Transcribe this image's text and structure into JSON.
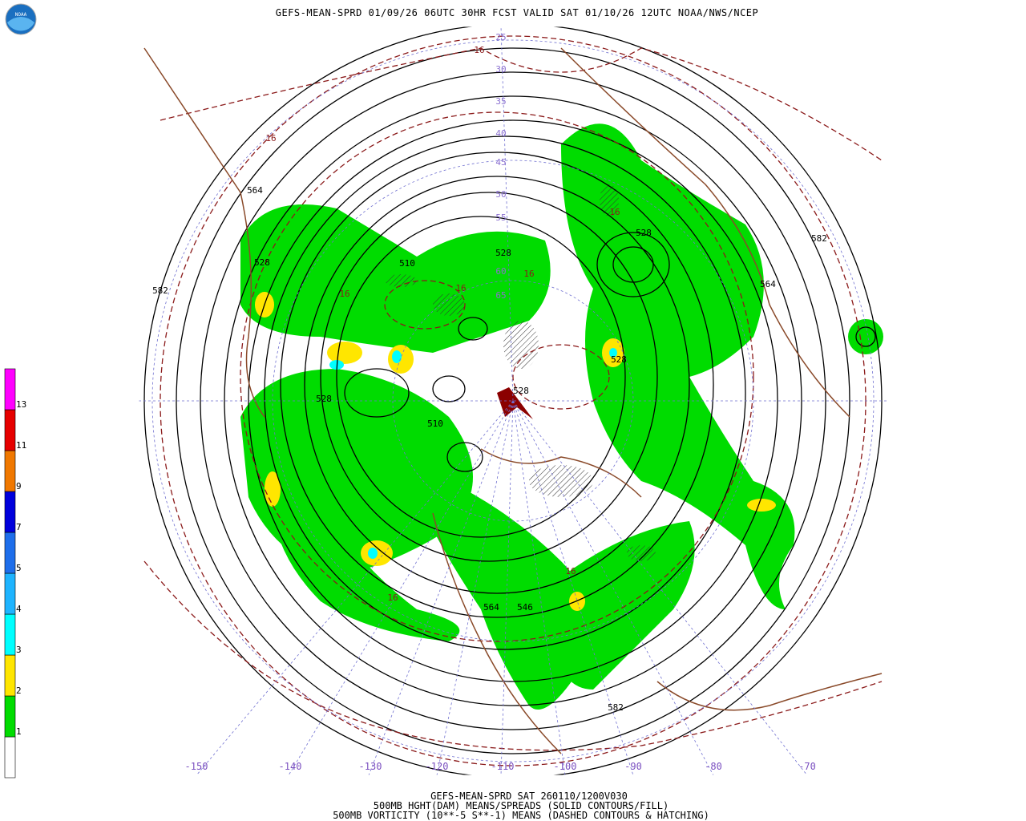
{
  "header": {
    "title": "GEFS-MEAN-SPRD 01/09/26 06UTC 30HR FCST VALID SAT 01/10/26 12UTC NOAA/NWS/NCEP",
    "logo": "NOAA"
  },
  "footer": [
    "GEFS-MEAN-SPRD SAT 260110/1200V030",
    "500MB HGHT(DAM) MEANS/SPREADS (SOLID CONTOURS/FILL)",
    "500MB VORTICITY (10**-5 S**-1) MEANS (DASHED CONTOURS & HATCHING)"
  ],
  "colorbar": {
    "labels": [
      1,
      2,
      3,
      4,
      5,
      7,
      9,
      11,
      13
    ],
    "colors": [
      "#ffffff",
      "#00dc00",
      "#ffe600",
      "#00ffff",
      "#1eb4ff",
      "#1e6eeb",
      "#0000dc",
      "#f07800",
      "#e60000",
      "#ff00ff"
    ]
  },
  "longitudes": [
    -150,
    -140,
    -130,
    -120,
    -110,
    -100,
    -90,
    -80,
    -70
  ],
  "latitudes": [
    25,
    30,
    35,
    40,
    45,
    50,
    55,
    60,
    65
  ],
  "height_labels": [
    582,
    582,
    564,
    528,
    510,
    528,
    528,
    564,
    528,
    528,
    510,
    528,
    564,
    546,
    582
  ],
  "vorticity_labels": [
    16,
    16,
    16,
    16,
    16,
    16,
    16,
    16
  ]
}
